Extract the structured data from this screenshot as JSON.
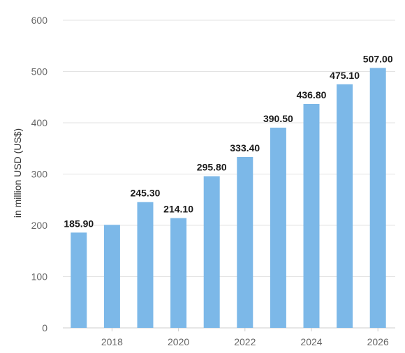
{
  "chart_data": {
    "type": "bar",
    "x": [
      2017,
      2018,
      2019,
      2020,
      2021,
      2022,
      2023,
      2024,
      2025,
      2026
    ],
    "values": [
      185.9,
      201,
      245.3,
      214.1,
      295.8,
      333.4,
      390.5,
      436.8,
      475.1,
      507.0
    ],
    "data_labels": [
      "185.90",
      "",
      "245.30",
      "214.10",
      "295.80",
      "333.40",
      "390.50",
      "436.80",
      "475.10",
      "507.00"
    ],
    "x_tick_labels": [
      {
        "value": 2018,
        "label": "2018"
      },
      {
        "value": 2020,
        "label": "2020"
      },
      {
        "value": 2022,
        "label": "2022"
      },
      {
        "value": 2024,
        "label": "2024"
      },
      {
        "value": 2026,
        "label": "2026"
      }
    ],
    "y_tick_labels": [
      "0",
      "100",
      "200",
      "300",
      "400",
      "500",
      "600"
    ],
    "ylabel": "in million USD (US$)",
    "xlabel": "",
    "ylim": [
      0,
      600
    ],
    "grid": true,
    "bar_color": "#7cb8e8"
  }
}
